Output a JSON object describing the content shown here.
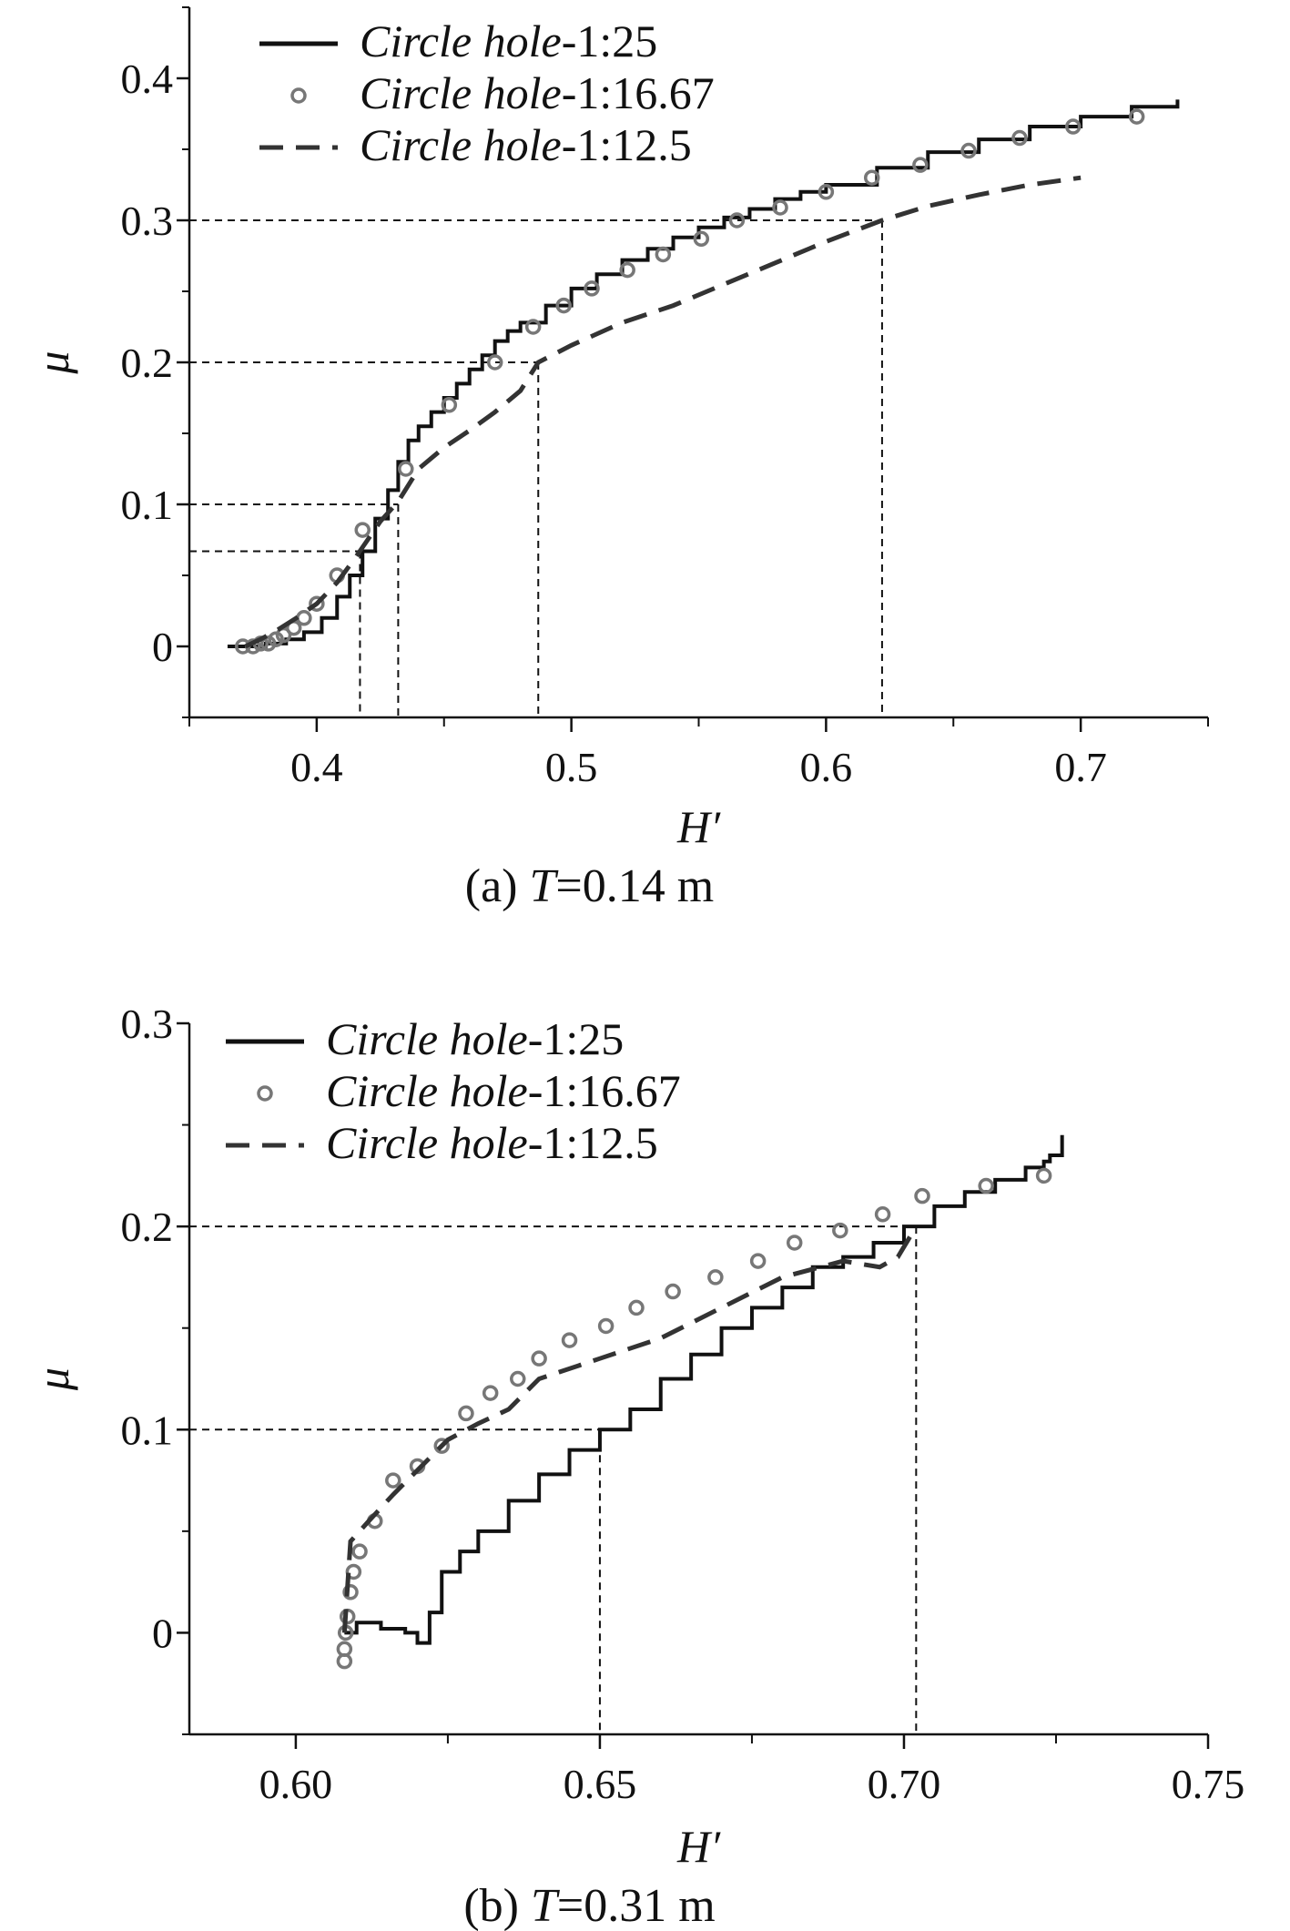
{
  "chart_data": [
    {
      "type": "line",
      "caption": {
        "prefix": "(a) ",
        "var": "T",
        "suffix": "=0.14 m"
      },
      "xlabel": "H′",
      "ylabel": "μ",
      "xlim": [
        0.35,
        0.75
      ],
      "ylim": [
        -0.05,
        0.45
      ],
      "x_ticks": [
        0.4,
        0.5,
        0.6,
        0.7
      ],
      "x_tick_labels": [
        "0.4",
        "0.5",
        "0.6",
        "0.7"
      ],
      "x_minor_ticks": [
        0.35,
        0.45,
        0.55,
        0.65,
        0.75
      ],
      "y_ticks": [
        0.0,
        0.1,
        0.2,
        0.3,
        0.4
      ],
      "y_tick_labels": [
        "0",
        "0.1",
        "0.2",
        "0.3",
        "0.4"
      ],
      "y_minor_ticks": [
        -0.05,
        0.05,
        0.15,
        0.25,
        0.35,
        0.45
      ],
      "legend_position": "top-left",
      "series": [
        {
          "name_italic": "Circle hole",
          "name_suffix": "-1:25",
          "style": "solid",
          "color": "#111111",
          "x": [
            0.365,
            0.372,
            0.38,
            0.388,
            0.395,
            0.402,
            0.408,
            0.413,
            0.418,
            0.423,
            0.428,
            0.432,
            0.436,
            0.44,
            0.445,
            0.45,
            0.455,
            0.46,
            0.465,
            0.47,
            0.475,
            0.48,
            0.49,
            0.5,
            0.51,
            0.52,
            0.53,
            0.54,
            0.55,
            0.56,
            0.57,
            0.58,
            0.59,
            0.6,
            0.62,
            0.64,
            0.66,
            0.68,
            0.7,
            0.72,
            0.738
          ],
          "y": [
            0.0,
            0.0,
            0.002,
            0.005,
            0.01,
            0.02,
            0.035,
            0.05,
            0.067,
            0.09,
            0.11,
            0.13,
            0.145,
            0.155,
            0.165,
            0.175,
            0.185,
            0.195,
            0.205,
            0.215,
            0.222,
            0.228,
            0.24,
            0.252,
            0.262,
            0.272,
            0.28,
            0.288,
            0.295,
            0.302,
            0.308,
            0.315,
            0.32,
            0.325,
            0.337,
            0.348,
            0.357,
            0.366,
            0.373,
            0.38,
            0.385
          ]
        },
        {
          "name_italic": "Circle hole",
          "name_suffix": "-1:16.67",
          "style": "circles",
          "color": "#777777",
          "x": [
            0.371,
            0.375,
            0.378,
            0.381,
            0.384,
            0.387,
            0.391,
            0.395,
            0.4,
            0.408,
            0.418,
            0.435,
            0.452,
            0.47,
            0.485,
            0.497,
            0.508,
            0.522,
            0.536,
            0.551,
            0.565,
            0.582,
            0.6,
            0.618,
            0.637,
            0.656,
            0.676,
            0.697,
            0.722
          ],
          "y": [
            0.0,
            0.0,
            0.002,
            0.002,
            0.005,
            0.008,
            0.013,
            0.02,
            0.03,
            0.05,
            0.082,
            0.125,
            0.17,
            0.2,
            0.225,
            0.24,
            0.252,
            0.265,
            0.276,
            0.287,
            0.3,
            0.309,
            0.32,
            0.33,
            0.339,
            0.349,
            0.358,
            0.366,
            0.373
          ]
        },
        {
          "name_italic": "Circle hole",
          "name_suffix": "-1:12.5",
          "style": "dashed",
          "color": "#333333",
          "x": [
            0.372,
            0.378,
            0.385,
            0.392,
            0.4,
            0.408,
            0.415,
            0.42,
            0.425,
            0.432,
            0.44,
            0.45,
            0.46,
            0.47,
            0.48,
            0.487,
            0.5,
            0.52,
            0.54,
            0.56,
            0.58,
            0.6,
            0.622,
            0.64,
            0.66,
            0.68,
            0.7
          ],
          "y": [
            0.0,
            0.005,
            0.012,
            0.02,
            0.03,
            0.045,
            0.062,
            0.075,
            0.088,
            0.102,
            0.125,
            0.14,
            0.152,
            0.165,
            0.18,
            0.2,
            0.212,
            0.228,
            0.24,
            0.255,
            0.27,
            0.285,
            0.3,
            0.31,
            0.318,
            0.325,
            0.33
          ]
        }
      ],
      "reference_lines": [
        {
          "x": 0.417,
          "y": 0.067
        },
        {
          "x": 0.432,
          "y": 0.1
        },
        {
          "x": 0.487,
          "y": 0.2
        },
        {
          "x": 0.622,
          "y": 0.3
        }
      ]
    },
    {
      "type": "line",
      "caption": {
        "prefix": "(b) ",
        "var": "T",
        "suffix": "=0.31 m"
      },
      "xlabel": "H′",
      "ylabel": "μ",
      "xlim": [
        0.5825,
        0.75
      ],
      "ylim": [
        -0.05,
        0.3
      ],
      "x_ticks": [
        0.6,
        0.65,
        0.7,
        0.75
      ],
      "x_tick_labels": [
        "0.60",
        "0.65",
        "0.70",
        "0.75"
      ],
      "x_minor_ticks": [
        0.625,
        0.675,
        0.725
      ],
      "y_ticks": [
        0.0,
        0.1,
        0.2,
        0.3
      ],
      "y_tick_labels": [
        "0",
        "0.1",
        "0.2",
        "0.3"
      ],
      "y_minor_ticks": [
        -0.05,
        0.05,
        0.15,
        0.25
      ],
      "legend_position": "top-left",
      "series": [
        {
          "name_italic": "Circle hole",
          "name_suffix": "-1:25",
          "style": "solid",
          "color": "#111111",
          "x": [
            0.608,
            0.61,
            0.614,
            0.618,
            0.62,
            0.622,
            0.624,
            0.627,
            0.63,
            0.635,
            0.64,
            0.645,
            0.65,
            0.655,
            0.66,
            0.665,
            0.67,
            0.675,
            0.68,
            0.685,
            0.69,
            0.695,
            0.7,
            0.705,
            0.71,
            0.715,
            0.72,
            0.723,
            0.724,
            0.726
          ],
          "y": [
            0.0,
            0.005,
            0.002,
            0.0,
            -0.005,
            0.01,
            0.03,
            0.04,
            0.05,
            0.065,
            0.078,
            0.09,
            0.1,
            0.11,
            0.125,
            0.137,
            0.15,
            0.16,
            0.17,
            0.18,
            0.185,
            0.192,
            0.2,
            0.21,
            0.217,
            0.223,
            0.229,
            0.232,
            0.235,
            0.245
          ]
        },
        {
          "name_italic": "Circle hole",
          "name_suffix": "-1:16.67",
          "style": "circles",
          "color": "#777777",
          "x": [
            0.608,
            0.608,
            0.6082,
            0.6085,
            0.609,
            0.6095,
            0.6105,
            0.613,
            0.616,
            0.62,
            0.624,
            0.628,
            0.632,
            0.6365,
            0.64,
            0.645,
            0.651,
            0.656,
            0.662,
            0.669,
            0.676,
            0.682,
            0.6895,
            0.6965,
            0.703,
            0.7135,
            0.723
          ],
          "y": [
            -0.014,
            -0.008,
            0.0,
            0.008,
            0.02,
            0.03,
            0.04,
            0.055,
            0.075,
            0.082,
            0.092,
            0.108,
            0.118,
            0.125,
            0.135,
            0.144,
            0.151,
            0.16,
            0.168,
            0.175,
            0.183,
            0.192,
            0.198,
            0.206,
            0.215,
            0.22,
            0.225
          ]
        },
        {
          "name_italic": "Circle hole",
          "name_suffix": "-1:12.5",
          "style": "dashed",
          "color": "#333333",
          "x": [
            0.608,
            0.609,
            0.612,
            0.616,
            0.62,
            0.625,
            0.63,
            0.635,
            0.64,
            0.65,
            0.66,
            0.67,
            0.68,
            0.69,
            0.696,
            0.699,
            0.702
          ],
          "y": [
            0.0,
            0.045,
            0.055,
            0.068,
            0.08,
            0.095,
            0.103,
            0.11,
            0.125,
            0.135,
            0.145,
            0.16,
            0.175,
            0.183,
            0.18,
            0.185,
            0.2
          ]
        }
      ],
      "reference_lines": [
        {
          "x": 0.65,
          "y": 0.1
        },
        {
          "x": 0.702,
          "y": 0.2
        }
      ]
    }
  ]
}
